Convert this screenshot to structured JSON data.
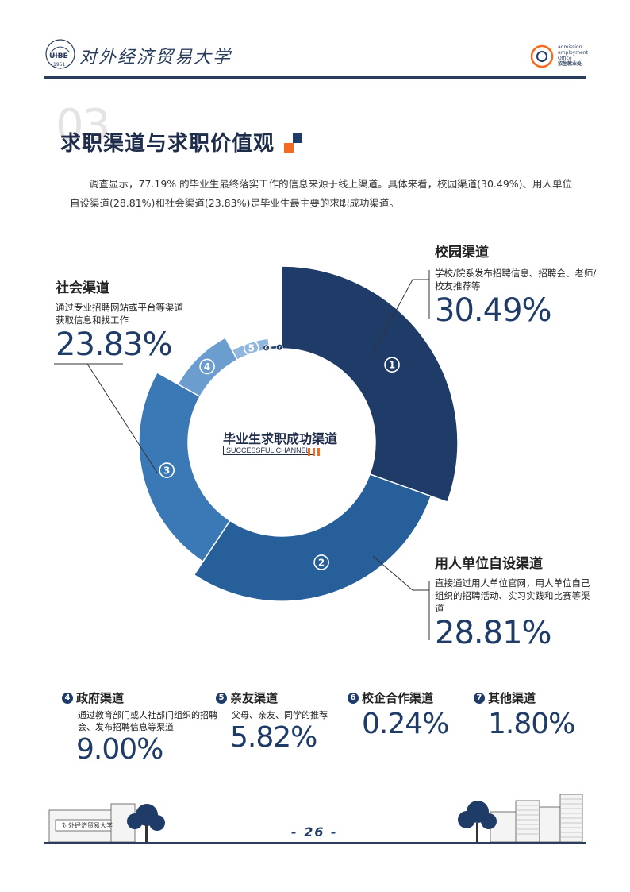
{
  "header": {
    "university_name": "对外经济贸易大学",
    "logo_year": "1951",
    "logo_initials": "UIBE",
    "office_lines": [
      "admission",
      "employment",
      "Office",
      "招生就业处"
    ]
  },
  "section": {
    "number": "03",
    "title": "求职渠道与求职价值观"
  },
  "intro": "调查显示，77.19% 的毕业生最终落实工作的信息来源于线上渠道。具体来看，校园渠道(30.49%)、用人单位自设渠道(28.81%)和社会渠道(23.83%)是毕业生最主要的求职成功渠道。",
  "chart_center": {
    "title": "毕业生求职成功渠道",
    "badge": "SUCCESSFUL CHANNEL"
  },
  "chart_data": {
    "type": "pie",
    "title": "毕业生求职成功渠道",
    "series": [
      {
        "id": "1",
        "name": "校园渠道",
        "value": 30.49,
        "color": "#1f3b67"
      },
      {
        "id": "2",
        "name": "用人单位自设渠道",
        "value": 28.81,
        "color": "#265f9a"
      },
      {
        "id": "3",
        "name": "社会渠道",
        "value": 23.83,
        "color": "#3a79b5"
      },
      {
        "id": "4",
        "name": "政府渠道",
        "value": 9.0,
        "color": "#6b9dce"
      },
      {
        "id": "5",
        "name": "亲友渠道",
        "value": 5.82,
        "color": "#8fb7dd"
      },
      {
        "id": "6",
        "name": "校企合作渠道",
        "value": 0.24,
        "color": "#24426e"
      },
      {
        "id": "7",
        "name": "其他渠道",
        "value": 1.8,
        "color": "#1f3b67"
      }
    ]
  },
  "labels": {
    "campus": {
      "title": "校园渠道",
      "desc": "学校/院系发布招聘信息、招聘会、老师/校友推荐等",
      "pct": "30.49%"
    },
    "employer": {
      "title": "用人单位自设渠道",
      "desc": "直接通过用人单位官网，用人单位自己组织的招聘活动、实习实践和比赛等渠道",
      "pct": "28.81%"
    },
    "social": {
      "title": "社会渠道",
      "desc": "通过专业招聘网站或平台等渠道获取信息和找工作",
      "pct": "23.83%"
    }
  },
  "bottom": [
    {
      "num": "4",
      "title": "政府渠道",
      "desc": "通过教育部门或人社部门组织的招聘会、发布招聘信息等渠道",
      "pct": "9.00%"
    },
    {
      "num": "5",
      "title": "亲友渠道",
      "desc": "父母、亲友、同学的推荐",
      "pct": "5.82%"
    },
    {
      "num": "6",
      "title": "校企合作渠道",
      "desc": "",
      "pct": "0.24%"
    },
    {
      "num": "7",
      "title": "其他渠道",
      "desc": "",
      "pct": "1.80%"
    }
  ],
  "footer": {
    "page_number": "- 26 -"
  }
}
